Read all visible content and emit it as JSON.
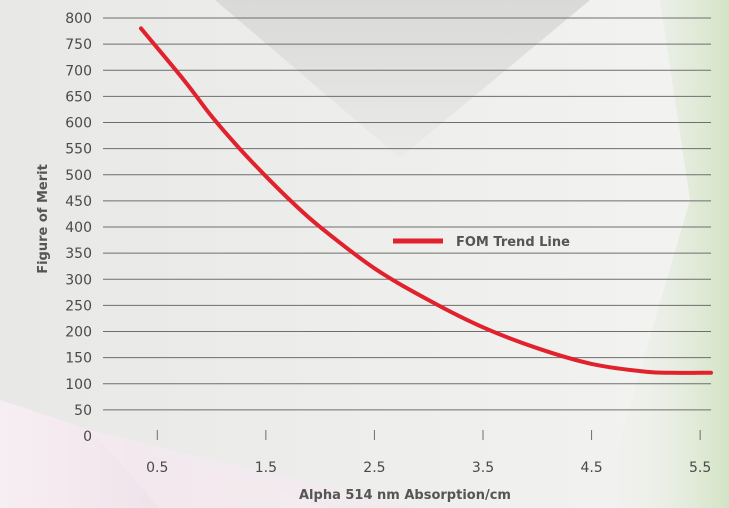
{
  "chart_data": {
    "type": "line",
    "xlabel": "Alpha 514 nm Absorption/cm",
    "ylabel": "Figure of Merit",
    "x_ticks": [
      "0.5",
      "1.5",
      "2.5",
      "3.5",
      "4.5",
      "5.5"
    ],
    "x_tick_values": [
      0.5,
      1.5,
      2.5,
      3.5,
      4.5,
      5.5
    ],
    "y_ticks": [
      "0",
      "50",
      "100",
      "150",
      "200",
      "250",
      "300",
      "350",
      "400",
      "450",
      "500",
      "550",
      "600",
      "650",
      "700",
      "750",
      "800"
    ],
    "xlim": [
      0.0,
      5.6
    ],
    "ylim": [
      0,
      800
    ],
    "grid": true,
    "legend_position": "center-right",
    "series": [
      {
        "name": "FOM Trend Line",
        "color": "#e1212b",
        "x": [
          0.35,
          0.75,
          1.0,
          1.25,
          1.5,
          1.75,
          2.0,
          2.5,
          3.0,
          3.5,
          4.0,
          4.5,
          5.0,
          5.25,
          5.5,
          5.6
        ],
        "y": [
          780,
          680,
          612,
          552,
          497,
          446,
          400,
          321,
          260,
          208,
          168,
          138,
          123,
          121,
          121,
          121
        ]
      }
    ]
  }
}
